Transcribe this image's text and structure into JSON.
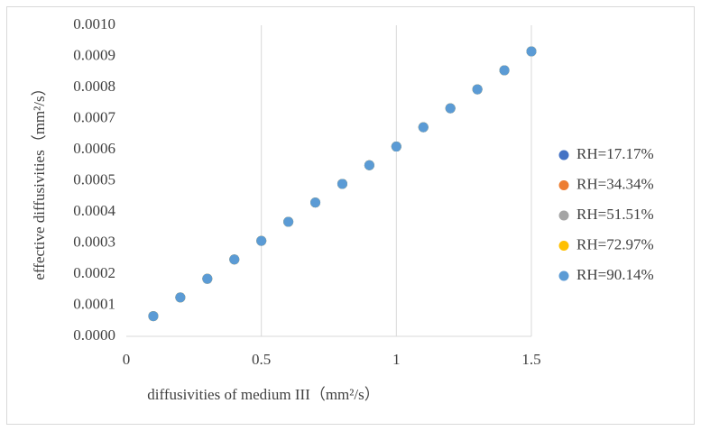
{
  "chart_data": {
    "type": "scatter",
    "xlabel": "diffusivities of medium III（mm²/s）",
    "ylabel": "effective diffusivities（mm²/s）",
    "x": [
      0.1,
      0.2,
      0.3,
      0.4,
      0.5,
      0.6,
      0.7,
      0.8,
      0.9,
      1.0,
      1.1,
      1.2,
      1.3,
      1.4,
      1.5
    ],
    "series": [
      {
        "name": "RH=17.17%",
        "color": "#4472c4",
        "values": [
          6.5e-05,
          0.000125,
          0.000185,
          0.000247,
          0.000307,
          0.000368,
          0.00043,
          0.00049,
          0.00055,
          0.00061,
          0.000672,
          0.000733,
          0.000794,
          0.000855,
          0.000916
        ]
      },
      {
        "name": "RH=34.34%",
        "color": "#ed7d31",
        "values": [
          6.5e-05,
          0.000125,
          0.000185,
          0.000247,
          0.000307,
          0.000368,
          0.00043,
          0.00049,
          0.00055,
          0.00061,
          0.000672,
          0.000733,
          0.000794,
          0.000855,
          0.000916
        ]
      },
      {
        "name": "RH=51.51%",
        "color": "#a5a5a5",
        "values": [
          6.5e-05,
          0.000125,
          0.000185,
          0.000247,
          0.000307,
          0.000368,
          0.00043,
          0.00049,
          0.00055,
          0.00061,
          0.000672,
          0.000733,
          0.000794,
          0.000855,
          0.000916
        ]
      },
      {
        "name": "RH=72.97%",
        "color": "#ffc000",
        "values": [
          6.5e-05,
          0.000125,
          0.000185,
          0.000247,
          0.000307,
          0.000368,
          0.00043,
          0.00049,
          0.00055,
          0.00061,
          0.000672,
          0.000733,
          0.000794,
          0.000855,
          0.000916
        ]
      },
      {
        "name": "RH=90.14%",
        "color": "#5b9bd5",
        "values": [
          6.5e-05,
          0.000125,
          0.000185,
          0.000247,
          0.000307,
          0.000368,
          0.00043,
          0.00049,
          0.00055,
          0.00061,
          0.000672,
          0.000733,
          0.000794,
          0.000855,
          0.000916
        ]
      }
    ],
    "xlim": [
      0,
      1.5
    ],
    "xticks": [
      0,
      0.5,
      1,
      1.5
    ],
    "ylim": [
      0,
      0.001
    ],
    "yticks": [
      {
        "value": 0,
        "label": "0.0000"
      },
      {
        "value": 0.0001,
        "label": "0.0001"
      },
      {
        "value": 0.0002,
        "label": "0.0002"
      },
      {
        "value": 0.0003,
        "label": "0.0003"
      },
      {
        "value": 0.0004,
        "label": "0.0004"
      },
      {
        "value": 0.0005,
        "label": "0.0005"
      },
      {
        "value": 0.0006,
        "label": "0.0006"
      },
      {
        "value": 0.0007,
        "label": "0.0007"
      },
      {
        "value": 0.0008,
        "label": "0.0008"
      },
      {
        "value": 0.0009,
        "label": "0.0009"
      },
      {
        "value": 0.001,
        "label": "0.0010"
      }
    ],
    "xgrid": true,
    "legend": "right"
  }
}
